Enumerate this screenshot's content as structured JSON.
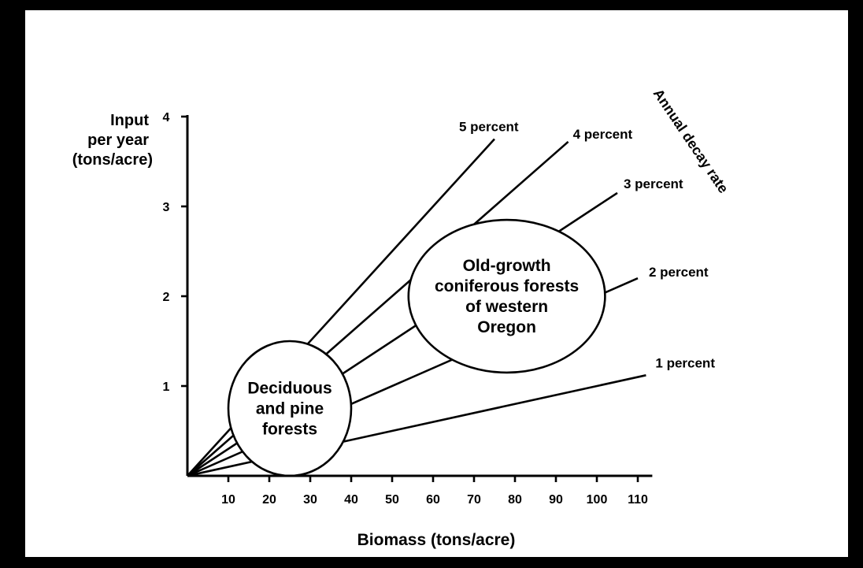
{
  "chart_data": {
    "type": "line",
    "ylabel": [
      "Input",
      "per year",
      "(tons/acre)"
    ],
    "xlabel": "Biomass (tons/acre)",
    "xticks": [
      10,
      20,
      30,
      40,
      50,
      60,
      70,
      80,
      90,
      100,
      110
    ],
    "yticks": [
      1,
      2,
      3,
      4
    ],
    "xlim": [
      0,
      112
    ],
    "ylim": [
      0,
      4
    ],
    "legend_title": "Annual decay rate",
    "series": [
      {
        "name": "5 percent",
        "rate": 0.05,
        "x": [
          0,
          75
        ],
        "y": [
          0,
          3.75
        ]
      },
      {
        "name": "4 percent",
        "rate": 0.04,
        "x": [
          0,
          93
        ],
        "y": [
          0,
          3.72
        ]
      },
      {
        "name": "3 percent",
        "rate": 0.03,
        "x": [
          0,
          105
        ],
        "y": [
          0,
          3.15
        ]
      },
      {
        "name": "2 percent",
        "rate": 0.02,
        "x": [
          0,
          110
        ],
        "y": [
          0,
          2.2
        ]
      },
      {
        "name": "1 percent",
        "rate": 0.01,
        "x": [
          0,
          112
        ],
        "y": [
          0,
          1.12
        ]
      }
    ],
    "regions": [
      {
        "label": [
          "Deciduous",
          "and pine",
          "forests"
        ],
        "cx": 25,
        "cy": 0.75,
        "rx": 15,
        "ry": 0.75
      },
      {
        "label": [
          "Old-growth",
          "coniferous forests",
          "of western",
          "Oregon"
        ],
        "cx": 78,
        "cy": 2.0,
        "rx": 24,
        "ry": 0.85
      }
    ]
  }
}
